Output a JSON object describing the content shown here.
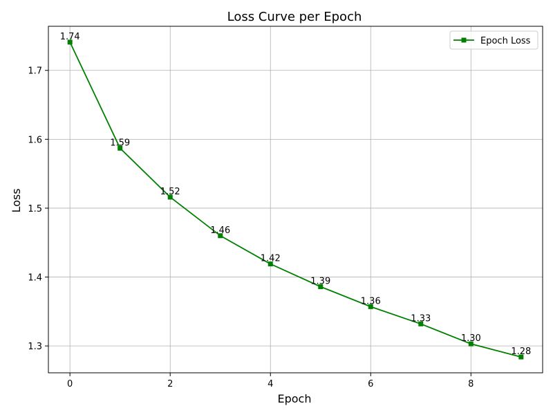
{
  "chart_data": {
    "type": "line",
    "title": "Loss Curve per Epoch",
    "xlabel": "Epoch",
    "ylabel": "Loss",
    "x": [
      0,
      1,
      2,
      3,
      4,
      5,
      6,
      7,
      8,
      9
    ],
    "series": [
      {
        "name": "Epoch Loss",
        "color": "#008000",
        "marker": "square",
        "values": [
          1.741,
          1.587,
          1.516,
          1.46,
          1.419,
          1.386,
          1.357,
          1.332,
          1.303,
          1.284
        ],
        "labels": [
          "1.74",
          "1.59",
          "1.52",
          "1.46",
          "1.42",
          "1.39",
          "1.36",
          "1.33",
          "1.30",
          "1.28"
        ]
      }
    ],
    "xlim": [
      -0.43,
      9.43
    ],
    "ylim": [
      1.261,
      1.764
    ],
    "xticks": [
      0,
      2,
      4,
      6,
      8
    ],
    "xtick_labels": [
      "0",
      "2",
      "4",
      "6",
      "8"
    ],
    "yticks": [
      1.3,
      1.4,
      1.5,
      1.6,
      1.7
    ],
    "ytick_labels": [
      "1.3",
      "1.4",
      "1.5",
      "1.6",
      "1.7"
    ],
    "grid": true,
    "legend_position": "top-right"
  }
}
